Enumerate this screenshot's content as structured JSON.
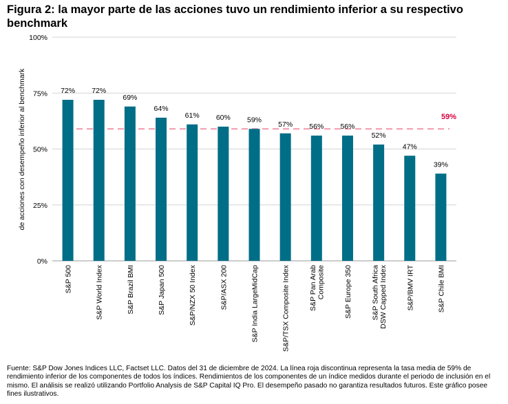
{
  "title": "Figura 2: la mayor parte de las acciones tuvo un rendimiento inferior a su respectivo benchmark",
  "footnote": "Fuente: S&P Dow Jones Indices LLC, Factset LLC. Datos del 31 de diciembre de 2024. La línea roja discontinua representa la tasa media de 59% de rendimiento inferior de los componentes de todos los índices. Rendimientos de los componentes de un índice medidos durante el periodo de inclusión en el mismo. El análisis se realizó utilizando Portfolio Analysis de S&P Capital IQ Pro. El desempeño pasado no garantiza resultados futuros. Este gráfico posee fines ilustrativos.",
  "chart_data": {
    "type": "bar",
    "title": "Figura 2: la mayor parte de las acciones tuvo un rendimiento inferior a su respectivo benchmark",
    "xlabel": "",
    "ylabel": "de acciones con desempeño inferior al benchmark",
    "ylim": [
      0,
      100
    ],
    "yticks": [
      0,
      25,
      50,
      75,
      100
    ],
    "ytick_labels": [
      "0%",
      "25%",
      "50%",
      "75%",
      "100%"
    ],
    "categories": [
      [
        "S&P 500"
      ],
      [
        "S&P World Index"
      ],
      [
        "S&P Brazil BMI"
      ],
      [
        "S&P Japan 500"
      ],
      [
        "S&P/NZX 50 Index"
      ],
      [
        "S&P/ASX 200"
      ],
      [
        "S&P India LargeMidCap"
      ],
      [
        "S&P/TSX Composite Index"
      ],
      [
        "S&P Pan Arab",
        "Composite"
      ],
      [
        "S&P Europe 350"
      ],
      [
        "S&P South Africa",
        "DSW Capped Index"
      ],
      [
        "S&P/BMV IRT"
      ],
      [
        "S&P Chile BMI"
      ]
    ],
    "values": [
      72,
      72,
      69,
      64,
      61,
      60,
      59,
      57,
      56,
      56,
      52,
      47,
      39
    ],
    "value_labels": [
      "72%",
      "72%",
      "69%",
      "64%",
      "61%",
      "60%",
      "59%",
      "57%",
      "56%",
      "56%",
      "52%",
      "47%",
      "39%"
    ],
    "bar_color": "#006e87",
    "average_line": {
      "value": 59,
      "label": "59%",
      "color": "#f4a9b8",
      "label_color": "#d6003d",
      "style": "dashed"
    },
    "grid": true,
    "legend": "none"
  }
}
